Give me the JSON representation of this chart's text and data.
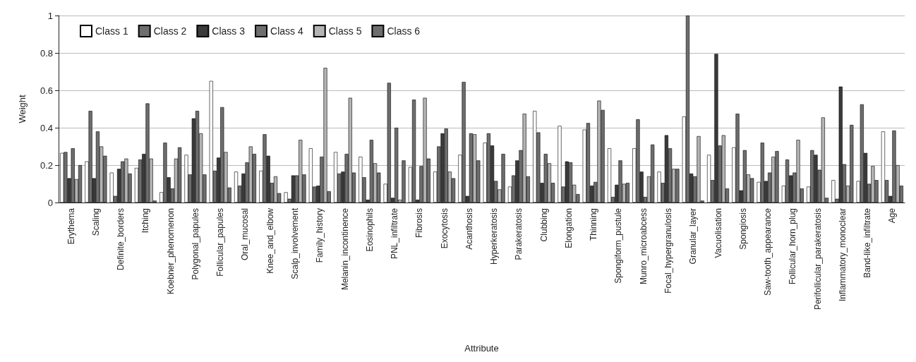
{
  "chart_data": {
    "type": "bar",
    "xlabel": "Attribute",
    "ylabel": "Weight",
    "ylim": [
      0,
      1
    ],
    "yticks": [
      0,
      0.2,
      0.4,
      0.6,
      0.8,
      1
    ],
    "grid": "y",
    "legend": "top left",
    "categories": [
      "Erythema",
      "Scaling",
      "Definite_borders",
      "Itching",
      "Koebner_phenomenon",
      "Polygonal_papules",
      "Follicular_papules",
      "Oral_mucosal",
      "Knee_and_elbow",
      "Scalp_involvement",
      "Family_history",
      "Melanin_incontinence",
      "Eosinophils",
      "PNL_infiltrate",
      "Fibrosis",
      "Exocytosis",
      "Acanthosis",
      "Hyperkeratosis",
      "Parakeratosis",
      "Clubbing",
      "Elongation",
      "Thinning",
      "Spongiform_pustule",
      "Munro_microabcess",
      "Focal_hypergranulosis",
      "Granular_layer",
      "Vacuolisation",
      "Spongiosis",
      "Saw-tooth_appearance",
      "Follicular_horn_plug",
      "Perifollicular_parakeratosis",
      "Inflammatory_monoclear",
      "Band-like_infiltrate",
      "Age"
    ],
    "series": [
      {
        "name": "Class 1",
        "color": "#ffffff",
        "values": [
          0.265,
          0.22,
          0.16,
          0.185,
          0.055,
          0.255,
          0.65,
          0.165,
          0.17,
          0.055,
          0.29,
          0.27,
          0.245,
          0.1,
          0.19,
          0.165,
          0.255,
          0.32,
          0.085,
          0.49,
          0.41,
          0.39,
          0.29,
          0.29,
          0.165,
          0.46,
          0.255,
          0.295,
          0.11,
          0.09,
          0.085,
          0.12,
          0.115,
          0.38
        ]
      },
      {
        "name": "Class 2",
        "color": "#6e6e6e",
        "values": [
          0.27,
          0.49,
          0.035,
          0.23,
          0.32,
          0.15,
          0.17,
          0.09,
          0.365,
          0.02,
          0.085,
          0.155,
          0.135,
          0.64,
          0.55,
          0.3,
          0.645,
          0.37,
          0.145,
          0.375,
          0.085,
          0.425,
          0.03,
          0.445,
          0.105,
          1.0,
          0.12,
          0.475,
          0.32,
          0.23,
          0.28,
          0.02,
          0.525,
          0.12
        ]
      },
      {
        "name": "Class 3",
        "color": "#3a3a3a",
        "values": [
          0.13,
          0.13,
          0.18,
          0.26,
          0.135,
          0.45,
          0.24,
          0.155,
          0.25,
          0.145,
          0.09,
          0.165,
          0.015,
          0.025,
          0.015,
          0.37,
          0.035,
          0.305,
          0.225,
          0.105,
          0.22,
          0.09,
          0.095,
          0.165,
          0.36,
          0.155,
          0.795,
          0.065,
          0.115,
          0.145,
          0.255,
          0.62,
          0.265,
          0.035
        ]
      },
      {
        "name": "Class 4",
        "color": "#6e6e6e",
        "values": [
          0.29,
          0.38,
          0.22,
          0.53,
          0.075,
          0.49,
          0.51,
          0.215,
          0.105,
          0.145,
          0.245,
          0.26,
          0.335,
          0.4,
          0.195,
          0.395,
          0.37,
          0.115,
          0.28,
          0.26,
          0.215,
          0.11,
          0.225,
          0.03,
          0.29,
          0.14,
          0.305,
          0.28,
          0.16,
          0.16,
          0.175,
          0.205,
          0.1,
          0.385
        ]
      },
      {
        "name": "Class 5",
        "color": "#b4b4b4",
        "values": [
          0.125,
          0.3,
          0.235,
          0.235,
          0.235,
          0.37,
          0.27,
          0.3,
          0.14,
          0.335,
          0.72,
          0.56,
          0.21,
          0.015,
          0.56,
          0.165,
          0.365,
          0.07,
          0.475,
          0.21,
          0.095,
          0.545,
          0.1,
          0.14,
          0.18,
          0.355,
          0.36,
          0.15,
          0.245,
          0.335,
          0.455,
          0.09,
          0.195,
          0.2
        ]
      },
      {
        "name": "Class 6",
        "color": "#6e6e6e",
        "values": [
          0.2,
          0.25,
          0.155,
          0.01,
          0.295,
          0.15,
          0.08,
          0.26,
          0.05,
          0.15,
          0.06,
          0.16,
          0.16,
          0.225,
          0.235,
          0.13,
          0.225,
          0.26,
          0.14,
          0.105,
          0.045,
          0.495,
          0.105,
          0.31,
          0.18,
          0.01,
          0.075,
          0.13,
          0.275,
          0.075,
          0.025,
          0.415,
          0.12,
          0.09
        ]
      }
    ]
  }
}
